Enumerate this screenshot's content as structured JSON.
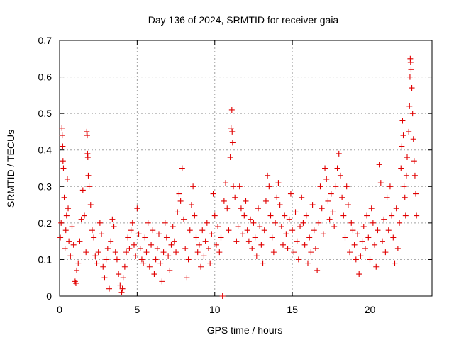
{
  "chart_data": {
    "type": "scatter",
    "title": "Day 136 of 2024, SRMTID for receiver gaia",
    "xlabel": "GPS time / hours",
    "ylabel": "SRMTID / TECUs",
    "xlim": [
      0,
      24
    ],
    "ylim": [
      0,
      0.7
    ],
    "xticks": [
      "0",
      "5",
      "10",
      "15",
      "20"
    ],
    "yticks": [
      "0",
      "0.1",
      "0.2",
      "0.3",
      "0.4",
      "0.5",
      "0.6",
      "0.7"
    ],
    "grid": true,
    "marker": "+",
    "color": "#e00000",
    "series": [
      {
        "name": "SRMTID",
        "points": [
          [
            0.05,
            0.16
          ],
          [
            0.1,
            0.2
          ],
          [
            0.15,
            0.46
          ],
          [
            0.17,
            0.44
          ],
          [
            0.2,
            0.41
          ],
          [
            0.22,
            0.37
          ],
          [
            0.25,
            0.35
          ],
          [
            0.3,
            0.27
          ],
          [
            0.35,
            0.13
          ],
          [
            0.4,
            0.18
          ],
          [
            0.45,
            0.22
          ],
          [
            0.5,
            0.32
          ],
          [
            0.55,
            0.24
          ],
          [
            0.6,
            0.15
          ],
          [
            0.7,
            0.11
          ],
          [
            0.8,
            0.19
          ],
          [
            0.9,
            0.14
          ],
          [
            1.0,
            0.04
          ],
          [
            1.05,
            0.035
          ],
          [
            1.1,
            0.07
          ],
          [
            1.2,
            0.09
          ],
          [
            1.3,
            0.15
          ],
          [
            1.4,
            0.21
          ],
          [
            1.5,
            0.29
          ],
          [
            1.6,
            0.22
          ],
          [
            1.7,
            0.12
          ],
          [
            1.75,
            0.45
          ],
          [
            1.78,
            0.44
          ],
          [
            1.8,
            0.39
          ],
          [
            1.82,
            0.38
          ],
          [
            1.85,
            0.33
          ],
          [
            1.9,
            0.3
          ],
          [
            2.0,
            0.25
          ],
          [
            2.1,
            0.18
          ],
          [
            2.2,
            0.16
          ],
          [
            2.3,
            0.11
          ],
          [
            2.4,
            0.09
          ],
          [
            2.5,
            0.12
          ],
          [
            2.6,
            0.2
          ],
          [
            2.7,
            0.17
          ],
          [
            2.8,
            0.08
          ],
          [
            2.9,
            0.05
          ],
          [
            3.0,
            0.1
          ],
          [
            3.1,
            0.13
          ],
          [
            3.2,
            0.02
          ],
          [
            3.3,
            0.15
          ],
          [
            3.4,
            0.21
          ],
          [
            3.5,
            0.19
          ],
          [
            3.6,
            0.12
          ],
          [
            3.7,
            0.1
          ],
          [
            3.8,
            0.06
          ],
          [
            3.9,
            0.03
          ],
          [
            4.0,
            0.01
          ],
          [
            4.05,
            0.02
          ],
          [
            4.1,
            0.05
          ],
          [
            4.2,
            0.08
          ],
          [
            4.3,
            0.12
          ],
          [
            4.4,
            0.16
          ],
          [
            4.5,
            0.13
          ],
          [
            4.6,
            0.18
          ],
          [
            4.7,
            0.2
          ],
          [
            4.8,
            0.14
          ],
          [
            4.9,
            0.11
          ],
          [
            5.0,
            0.24
          ],
          [
            5.1,
            0.17
          ],
          [
            5.2,
            0.13
          ],
          [
            5.3,
            0.1
          ],
          [
            5.4,
            0.09
          ],
          [
            5.5,
            0.16
          ],
          [
            5.6,
            0.12
          ],
          [
            5.7,
            0.2
          ],
          [
            5.8,
            0.08
          ],
          [
            5.9,
            0.14
          ],
          [
            6.0,
            0.18
          ],
          [
            6.1,
            0.06
          ],
          [
            6.2,
            0.1
          ],
          [
            6.3,
            0.13
          ],
          [
            6.4,
            0.17
          ],
          [
            6.5,
            0.09
          ],
          [
            6.6,
            0.04
          ],
          [
            6.7,
            0.12
          ],
          [
            6.8,
            0.2
          ],
          [
            6.9,
            0.16
          ],
          [
            7.0,
            0.11
          ],
          [
            7.1,
            0.07
          ],
          [
            7.2,
            0.14
          ],
          [
            7.3,
            0.19
          ],
          [
            7.4,
            0.15
          ],
          [
            7.5,
            0.12
          ],
          [
            7.6,
            0.23
          ],
          [
            7.7,
            0.28
          ],
          [
            7.8,
            0.26
          ],
          [
            7.9,
            0.35
          ],
          [
            8.0,
            0.21
          ],
          [
            8.1,
            0.13
          ],
          [
            8.2,
            0.05
          ],
          [
            8.3,
            0.1
          ],
          [
            8.4,
            0.18
          ],
          [
            8.5,
            0.25
          ],
          [
            8.6,
            0.3
          ],
          [
            8.7,
            0.22
          ],
          [
            8.8,
            0.16
          ],
          [
            8.9,
            0.12
          ],
          [
            9.0,
            0.14
          ],
          [
            9.1,
            0.08
          ],
          [
            9.2,
            0.18
          ],
          [
            9.3,
            0.11
          ],
          [
            9.4,
            0.15
          ],
          [
            9.5,
            0.2
          ],
          [
            9.6,
            0.13
          ],
          [
            9.7,
            0.09
          ],
          [
            9.8,
            0.17
          ],
          [
            9.9,
            0.28
          ],
          [
            10.0,
            0.22
          ],
          [
            10.1,
            0.14
          ],
          [
            10.2,
            0.19
          ],
          [
            10.3,
            0.12
          ],
          [
            10.4,
            0.16
          ],
          [
            10.5,
            0.0
          ],
          [
            10.6,
            0.26
          ],
          [
            10.7,
            0.31
          ],
          [
            10.8,
            0.24
          ],
          [
            10.9,
            0.18
          ],
          [
            11.0,
            0.38
          ],
          [
            11.05,
            0.46
          ],
          [
            11.1,
            0.51
          ],
          [
            11.12,
            0.45
          ],
          [
            11.15,
            0.42
          ],
          [
            11.2,
            0.3
          ],
          [
            11.3,
            0.27
          ],
          [
            11.4,
            0.15
          ],
          [
            11.5,
            0.19
          ],
          [
            11.6,
            0.3
          ],
          [
            11.7,
            0.24
          ],
          [
            11.8,
            0.17
          ],
          [
            11.9,
            0.22
          ],
          [
            12.0,
            0.26
          ],
          [
            12.1,
            0.18
          ],
          [
            12.2,
            0.15
          ],
          [
            12.3,
            0.21
          ],
          [
            12.4,
            0.13
          ],
          [
            12.5,
            0.2
          ],
          [
            12.6,
            0.16
          ],
          [
            12.7,
            0.11
          ],
          [
            12.8,
            0.24
          ],
          [
            12.9,
            0.19
          ],
          [
            13.0,
            0.14
          ],
          [
            13.1,
            0.09
          ],
          [
            13.2,
            0.18
          ],
          [
            13.3,
            0.26
          ],
          [
            13.4,
            0.33
          ],
          [
            13.5,
            0.3
          ],
          [
            13.6,
            0.22
          ],
          [
            13.7,
            0.16
          ],
          [
            13.8,
            0.12
          ],
          [
            13.9,
            0.2
          ],
          [
            14.0,
            0.27
          ],
          [
            14.1,
            0.31
          ],
          [
            14.2,
            0.25
          ],
          [
            14.3,
            0.19
          ],
          [
            14.4,
            0.14
          ],
          [
            14.5,
            0.22
          ],
          [
            14.6,
            0.17
          ],
          [
            14.7,
            0.13
          ],
          [
            14.8,
            0.21
          ],
          [
            14.9,
            0.28
          ],
          [
            15.0,
            0.18
          ],
          [
            15.1,
            0.12
          ],
          [
            15.2,
            0.23
          ],
          [
            15.3,
            0.15
          ],
          [
            15.4,
            0.1
          ],
          [
            15.5,
            0.19
          ],
          [
            15.6,
            0.27
          ],
          [
            15.7,
            0.2
          ],
          [
            15.8,
            0.14
          ],
          [
            15.9,
            0.22
          ],
          [
            16.0,
            0.09
          ],
          [
            16.1,
            0.16
          ],
          [
            16.2,
            0.12
          ],
          [
            16.3,
            0.25
          ],
          [
            16.4,
            0.18
          ],
          [
            16.5,
            0.13
          ],
          [
            16.6,
            0.07
          ],
          [
            16.7,
            0.2
          ],
          [
            16.8,
            0.3
          ],
          [
            16.9,
            0.24
          ],
          [
            17.0,
            0.17
          ],
          [
            17.1,
            0.35
          ],
          [
            17.2,
            0.32
          ],
          [
            17.3,
            0.26
          ],
          [
            17.4,
            0.21
          ],
          [
            17.5,
            0.28
          ],
          [
            17.6,
            0.23
          ],
          [
            17.7,
            0.19
          ],
          [
            17.8,
            0.3
          ],
          [
            17.9,
            0.35
          ],
          [
            18.0,
            0.39
          ],
          [
            18.1,
            0.33
          ],
          [
            18.2,
            0.27
          ],
          [
            18.3,
            0.22
          ],
          [
            18.4,
            0.16
          ],
          [
            18.5,
            0.3
          ],
          [
            18.6,
            0.25
          ],
          [
            18.7,
            0.12
          ],
          [
            18.8,
            0.2
          ],
          [
            18.9,
            0.18
          ],
          [
            19.0,
            0.14
          ],
          [
            19.1,
            0.1
          ],
          [
            19.2,
            0.17
          ],
          [
            19.3,
            0.06
          ],
          [
            19.4,
            0.11
          ],
          [
            19.5,
            0.15
          ],
          [
            19.6,
            0.19
          ],
          [
            19.7,
            0.13
          ],
          [
            19.8,
            0.22
          ],
          [
            19.9,
            0.16
          ],
          [
            20.0,
            0.1
          ],
          [
            20.1,
            0.24
          ],
          [
            20.2,
            0.2
          ],
          [
            20.3,
            0.14
          ],
          [
            20.4,
            0.08
          ],
          [
            20.5,
            0.18
          ],
          [
            20.6,
            0.36
          ],
          [
            20.7,
            0.31
          ],
          [
            20.8,
            0.15
          ],
          [
            20.9,
            0.21
          ],
          [
            21.0,
            0.12
          ],
          [
            21.1,
            0.27
          ],
          [
            21.2,
            0.18
          ],
          [
            21.3,
            0.3
          ],
          [
            21.4,
            0.22
          ],
          [
            21.5,
            0.16
          ],
          [
            21.6,
            0.09
          ],
          [
            21.7,
            0.24
          ],
          [
            21.8,
            0.13
          ],
          [
            21.9,
            0.2
          ],
          [
            22.0,
            0.35
          ],
          [
            22.05,
            0.41
          ],
          [
            22.1,
            0.48
          ],
          [
            22.15,
            0.44
          ],
          [
            22.2,
            0.3
          ],
          [
            22.25,
            0.27
          ],
          [
            22.3,
            0.22
          ],
          [
            22.35,
            0.33
          ],
          [
            22.4,
            0.38
          ],
          [
            22.5,
            0.45
          ],
          [
            22.55,
            0.52
          ],
          [
            22.58,
            0.6
          ],
          [
            22.6,
            0.65
          ],
          [
            22.62,
            0.64
          ],
          [
            22.65,
            0.62
          ],
          [
            22.7,
            0.57
          ],
          [
            22.75,
            0.5
          ],
          [
            22.8,
            0.43
          ],
          [
            22.85,
            0.37
          ],
          [
            22.9,
            0.33
          ],
          [
            22.95,
            0.28
          ],
          [
            23.0,
            0.22
          ]
        ]
      }
    ]
  }
}
